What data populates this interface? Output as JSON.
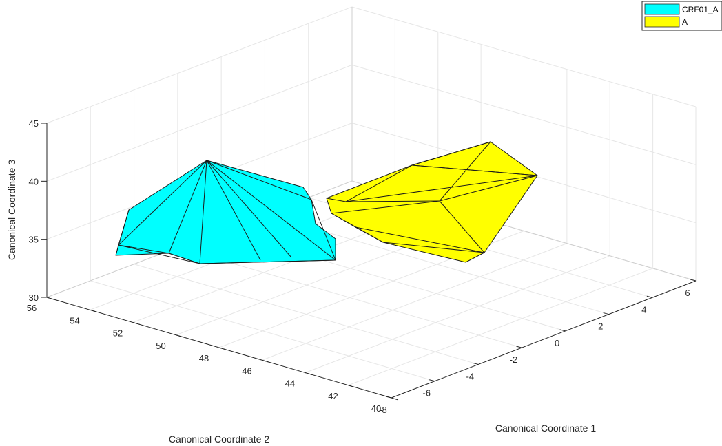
{
  "chart_data": {
    "type": "3d-convex-hull",
    "xlabel": "Canonical Coordinate 1",
    "ylabel": "Canonical Coordinate 2",
    "zlabel": "Canonical Coordinate 3",
    "xlim": [
      -8,
      6
    ],
    "ylim": [
      40,
      56
    ],
    "zlim": [
      30,
      45
    ],
    "x_ticks": [
      "-8",
      "-6",
      "-4",
      "-2",
      "0",
      "2",
      "4",
      "6"
    ],
    "y_ticks": [
      "40",
      "42",
      "44",
      "46",
      "48",
      "50",
      "52",
      "54",
      "56"
    ],
    "z_ticks": [
      "30",
      "35",
      "40",
      "45"
    ],
    "grid": true,
    "legend_position": "top-right",
    "series": [
      {
        "name": "CRF01_A",
        "color": "#00ffff"
      },
      {
        "name": "A",
        "color": "#ffff00"
      }
    ]
  }
}
